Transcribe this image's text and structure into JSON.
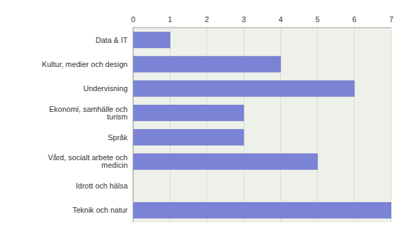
{
  "chart_data": {
    "type": "bar",
    "orientation": "horizontal",
    "categories": [
      "Data & IT",
      "Kultur, medier och design",
      "Undervisning",
      "Ekonomi, samhälle och turism",
      "Språk",
      "Vård, socialt arbete och medicin",
      "Idrott och hälsa",
      "Teknik och natur"
    ],
    "values": [
      1,
      4,
      6,
      3,
      3,
      5,
      0,
      7
    ],
    "color": "#7b83d6",
    "xlim": [
      0,
      7
    ],
    "xticks": [
      0,
      1,
      2,
      3,
      4,
      5,
      6,
      7
    ],
    "grid": true
  }
}
